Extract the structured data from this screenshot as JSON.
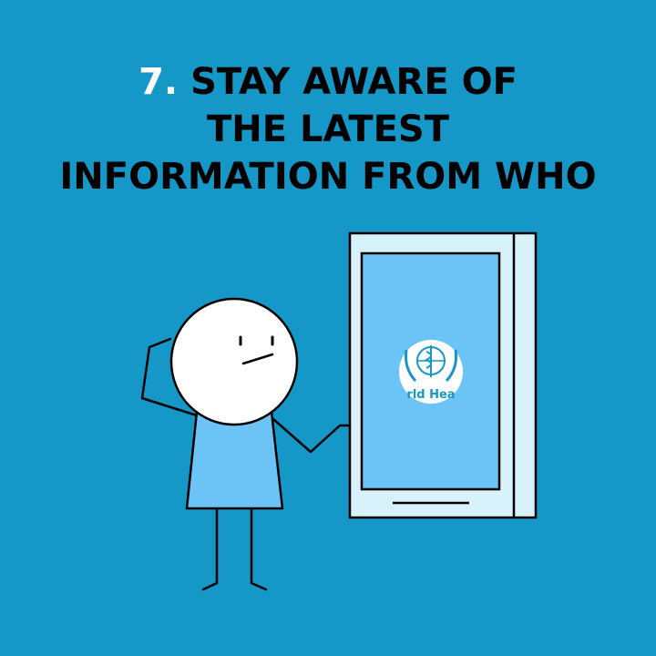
{
  "headline": {
    "number": "7.",
    "line1": "STAY AWARE OF",
    "line2": "THE LATEST",
    "line3": "INFORMATION FROM WHO"
  },
  "phone": {
    "logo_text": "rld Hea"
  },
  "icons": {
    "logo": "who-emblem-icon"
  },
  "colors": {
    "background": "#1597c8",
    "screen": "#6cc3f5",
    "device_frame": "#d8f2fb",
    "shirt": "#6cc3f5"
  }
}
